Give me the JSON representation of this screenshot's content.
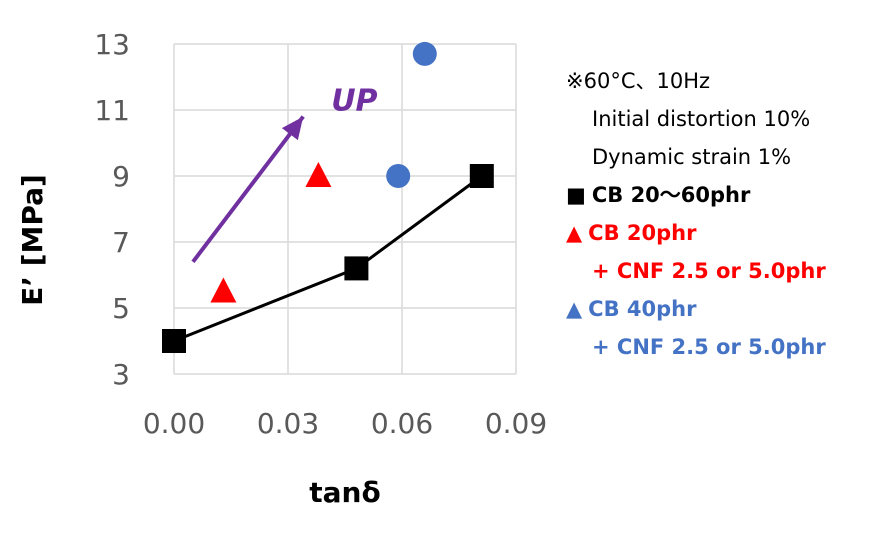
{
  "chart_data": {
    "type": "scatter",
    "xlabel": "tanδ",
    "ylabel": "E’ [MPa]",
    "xlim": [
      0.0,
      0.09
    ],
    "ylim": [
      3,
      13
    ],
    "x_ticks": [
      "0.00",
      "0.03",
      "0.06",
      "0.09"
    ],
    "y_ticks": [
      "3",
      "5",
      "7",
      "9",
      "11",
      "13"
    ],
    "grid": true,
    "series": [
      {
        "name": "CB 20〜60phr",
        "marker": "square",
        "line": true,
        "color": "#000000",
        "points": [
          {
            "x": 0.0,
            "y": 4.0
          },
          {
            "x": 0.048,
            "y": 6.2
          },
          {
            "x": 0.081,
            "y": 9.0
          }
        ]
      },
      {
        "name": "CB 20phr + CNF 2.5 or 5.0phr",
        "marker": "triangle",
        "line": false,
        "color": "#ff0000",
        "points": [
          {
            "x": 0.013,
            "y": 5.5
          },
          {
            "x": 0.038,
            "y": 9.0
          }
        ]
      },
      {
        "name": "CB 40phr + CNF 2.5 or 5.0phr",
        "marker": "circle",
        "line": false,
        "color": "#4472c4",
        "points": [
          {
            "x": 0.059,
            "y": 9.0
          },
          {
            "x": 0.066,
            "y": 12.7
          }
        ]
      }
    ],
    "annotation": {
      "text": "UP",
      "color": "#7030a0",
      "arrow_from": {
        "x": 0.005,
        "y": 6.4
      },
      "arrow_to": {
        "x": 0.034,
        "y": 10.8
      }
    }
  },
  "legend": {
    "note_line1": "※60°C、10Hz",
    "note_line2": "Initial distortion 10%",
    "note_line3": "Dynamic strain 1%",
    "item1_marker": "■",
    "item1_label": "CB 20〜60phr",
    "item2_marker": "▲",
    "item2_label": "CB 20phr",
    "item2_label_cont": "+ CNF 2.5 or 5.0phr",
    "item3_marker": "▲",
    "item3_label": "CB 40phr",
    "item3_label_cont": "+ CNF 2.5 or 5.0phr"
  }
}
